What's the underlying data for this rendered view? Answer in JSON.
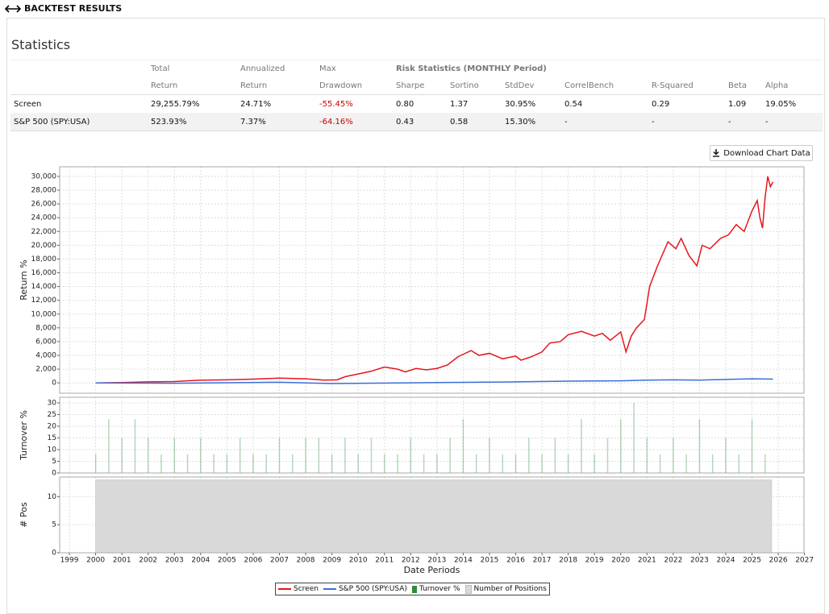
{
  "header": {
    "title": "BACKTEST RESULTS"
  },
  "statistics": {
    "title": "Statistics",
    "header_top": [
      "Total",
      "Annualized",
      "Max"
    ],
    "group_header": "Risk Statistics (MONTHLY Period)",
    "columns": [
      "Return",
      "Return",
      "Drawdown",
      "Sharpe",
      "Sortino",
      "StdDev",
      "CorrelBench",
      "R-Squared",
      "Beta",
      "Alpha"
    ],
    "rows": [
      [
        "Screen",
        "29,255.79%",
        "24.71%",
        "-55.45%",
        "0.80",
        "1.37",
        "30.95%",
        "0.54",
        "0.29",
        "1.09",
        "19.05%"
      ],
      [
        "S&P 500 (SPY:USA)",
        "523.93%",
        "7.37%",
        "-64.16%",
        "0.43",
        "0.58",
        "15.30%",
        "-",
        "-",
        "-",
        "-"
      ]
    ]
  },
  "download_button": {
    "label": "Download Chart Data"
  },
  "chart_data": [
    {
      "type": "line",
      "ylabel": "Return %",
      "xlim": [
        1998.63,
        2026.98
      ],
      "ylim": [
        -1500,
        31400
      ],
      "yticks": [
        0,
        {
          "value": 2000,
          "label": "2,000"
        },
        {
          "value": 4000,
          "label": "4,000"
        },
        {
          "value": 6000,
          "label": "6,000"
        },
        {
          "value": 8000,
          "label": "8,000"
        },
        {
          "value": 10000,
          "label": "10,000"
        },
        {
          "value": 12000,
          "label": "12,000"
        },
        {
          "value": 14000,
          "label": "14,000"
        },
        {
          "value": 16000,
          "label": "16,000"
        },
        {
          "value": 18000,
          "label": "18,000"
        },
        {
          "value": 20000,
          "label": "20,000"
        },
        {
          "value": 22000,
          "label": "22,000"
        },
        {
          "value": 24000,
          "label": "24,000"
        },
        {
          "value": 26000,
          "label": "26,000"
        },
        {
          "value": 28000,
          "label": "28,000"
        },
        {
          "value": 30000,
          "label": "30,000"
        }
      ],
      "series": [
        {
          "name": "Screen",
          "color": "#e8141c",
          "x": [
            2000,
            2001,
            2002,
            2003,
            2004,
            2005,
            2006,
            2007,
            2008,
            2008.7,
            2009.2,
            2009.5,
            2010,
            2010.5,
            2011,
            2011.5,
            2011.8,
            2012.2,
            2012.6,
            2013,
            2013.4,
            2013.8,
            2014.3,
            2014.6,
            2015,
            2015.5,
            2016,
            2016.2,
            2016.6,
            2017,
            2017.3,
            2017.7,
            2018,
            2018.5,
            2019,
            2019.3,
            2019.6,
            2020,
            2020.2,
            2020.4,
            2020.6,
            2020.9,
            2021.1,
            2021.4,
            2021.8,
            2022.1,
            2022.3,
            2022.6,
            2022.9,
            2023.1,
            2023.4,
            2023.8,
            2024.1,
            2024.4,
            2024.7,
            2025,
            2025.2,
            2025.3,
            2025.4,
            2025.5,
            2025.6,
            2025.7,
            2025.8
          ],
          "values": [
            0,
            50,
            150,
            200,
            400,
            450,
            550,
            700,
            600,
            400,
            450,
            900,
            1300,
            1700,
            2300,
            2000,
            1600,
            2100,
            1900,
            2100,
            2600,
            3800,
            4700,
            4000,
            4300,
            3500,
            3900,
            3300,
            3800,
            4500,
            5800,
            6000,
            7000,
            7500,
            6800,
            7200,
            6200,
            7400,
            4500,
            6800,
            8000,
            9200,
            14000,
            17000,
            20500,
            19500,
            21000,
            18500,
            17000,
            20000,
            19500,
            21000,
            21500,
            23000,
            22000,
            25000,
            26500,
            24000,
            22500,
            27000,
            30000,
            28500,
            29200
          ]
        },
        {
          "name": "S&P 500 (SPY:USA)",
          "color": "#3a6fd8",
          "x": [
            2000,
            2003,
            2007,
            2009,
            2013,
            2016,
            2018,
            2020,
            2021,
            2022,
            2023,
            2024,
            2025,
            2025.8
          ],
          "values": [
            0,
            -50,
            100,
            -100,
            50,
            150,
            250,
            300,
            400,
            450,
            400,
            500,
            600,
            550
          ]
        }
      ]
    },
    {
      "type": "bar",
      "ylabel": "Turnover %",
      "xlim": [
        1998.63,
        2026.98
      ],
      "ylim": [
        0,
        32.4
      ],
      "yticks": [
        0,
        5,
        10,
        15,
        20,
        25,
        30
      ],
      "x": [
        2000,
        2000.5,
        2001,
        2001.5,
        2002,
        2002.5,
        2003,
        2003.5,
        2004,
        2004.5,
        2005,
        2005.5,
        2006,
        2006.5,
        2007,
        2007.5,
        2008,
        2008.5,
        2009,
        2009.5,
        2010,
        2010.5,
        2011,
        2011.5,
        2012,
        2012.5,
        2013,
        2013.5,
        2014,
        2014.5,
        2015,
        2015.5,
        2016,
        2016.5,
        2017,
        2017.5,
        2018,
        2018.5,
        2019,
        2019.5,
        2020,
        2020.5,
        2021,
        2021.5,
        2022,
        2022.5,
        2023,
        2023.5,
        2024,
        2024.5,
        2025,
        2025.5
      ],
      "series": [
        {
          "name": "Turnover %",
          "color": "#2e8b3e",
          "values": [
            8,
            23,
            15,
            23,
            15,
            8,
            15,
            8,
            15,
            8,
            8,
            15,
            8,
            8,
            15,
            8,
            15,
            15,
            8,
            15,
            8,
            15,
            8,
            8,
            15,
            8,
            8,
            15,
            23,
            8,
            15,
            8,
            8,
            15,
            8,
            15,
            8,
            23,
            8,
            15,
            23,
            30,
            15,
            8,
            15,
            8,
            23,
            8,
            15,
            8,
            23,
            8
          ]
        }
      ]
    },
    {
      "type": "area",
      "ylabel": "# Pos",
      "xlabel": "Date Periods",
      "xlim": [
        1998.63,
        2026.98
      ],
      "ylim": [
        0,
        13.5
      ],
      "yticks": [
        0,
        5,
        10
      ],
      "xticks": [
        1999,
        2000,
        2001,
        2002,
        2003,
        2004,
        2005,
        2006,
        2007,
        2008,
        2009,
        2010,
        2011,
        2012,
        2013,
        2014,
        2015,
        2016,
        2017,
        2018,
        2019,
        2020,
        2021,
        2022,
        2023,
        2024,
        2025,
        2026,
        2027
      ],
      "x": [
        2000,
        2025.75
      ],
      "series": [
        {
          "name": "Number of Positions",
          "color": "#d9d9d9",
          "values": [
            13,
            13
          ]
        }
      ]
    }
  ]
}
